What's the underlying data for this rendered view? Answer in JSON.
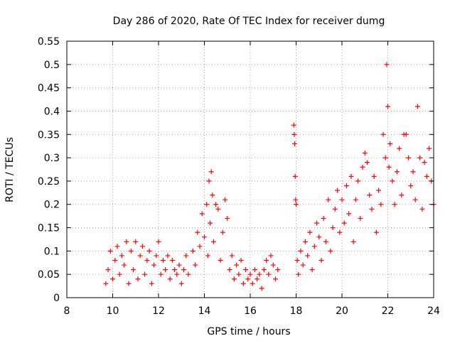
{
  "chart_data": {
    "type": "scatter",
    "title": "Day 286 of 2020, Rate Of TEC Index for receiver dumg",
    "xlabel": "GPS time / hours",
    "ylabel": "ROTI / TECUs",
    "xlim": [
      8,
      24
    ],
    "ylim": [
      0,
      0.55
    ],
    "x_ticks": [
      8,
      10,
      12,
      14,
      16,
      18,
      20,
      22,
      24
    ],
    "y_ticks": [
      0,
      0.05,
      0.1,
      0.15,
      0.2,
      0.25,
      0.3,
      0.35,
      0.4,
      0.45,
      0.5,
      0.55
    ],
    "x_tick_labels": [
      "8",
      "10",
      "12",
      "14",
      "16",
      "18",
      "20",
      "22",
      "24"
    ],
    "y_tick_labels": [
      "0",
      "0.05",
      "0.1",
      "0.15",
      "0.2",
      "0.25",
      "0.3",
      "0.35",
      "0.4",
      "0.45",
      "0.5",
      "0.55"
    ],
    "grid": true,
    "marker": "+",
    "series": [
      {
        "name": "ROTI",
        "color": "#ff0000",
        "points": [
          [
            9.7,
            0.03
          ],
          [
            9.8,
            0.06
          ],
          [
            9.9,
            0.1
          ],
          [
            10.0,
            0.04
          ],
          [
            10.1,
            0.08
          ],
          [
            10.2,
            0.11
          ],
          [
            10.3,
            0.05
          ],
          [
            10.4,
            0.09
          ],
          [
            10.5,
            0.07
          ],
          [
            10.6,
            0.12
          ],
          [
            10.7,
            0.03
          ],
          [
            10.8,
            0.1
          ],
          [
            10.9,
            0.06
          ],
          [
            11.0,
            0.12
          ],
          [
            11.1,
            0.04
          ],
          [
            11.2,
            0.09
          ],
          [
            11.3,
            0.11
          ],
          [
            11.4,
            0.05
          ],
          [
            11.5,
            0.08
          ],
          [
            11.6,
            0.1
          ],
          [
            11.7,
            0.03
          ],
          [
            11.8,
            0.07
          ],
          [
            11.9,
            0.09
          ],
          [
            12.0,
            0.12
          ],
          [
            12.1,
            0.05
          ],
          [
            12.2,
            0.08
          ],
          [
            12.3,
            0.06
          ],
          [
            12.4,
            0.09
          ],
          [
            12.5,
            0.04
          ],
          [
            12.6,
            0.08
          ],
          [
            12.7,
            0.06
          ],
          [
            12.8,
            0.05
          ],
          [
            12.9,
            0.07
          ],
          [
            13.0,
            0.03
          ],
          [
            13.1,
            0.06
          ],
          [
            13.2,
            0.09
          ],
          [
            13.3,
            0.05
          ],
          [
            13.5,
            0.1
          ],
          [
            13.6,
            0.07
          ],
          [
            13.7,
            0.14
          ],
          [
            13.8,
            0.11
          ],
          [
            13.9,
            0.18
          ],
          [
            14.0,
            0.13
          ],
          [
            14.1,
            0.2
          ],
          [
            14.15,
            0.09
          ],
          [
            14.2,
            0.25
          ],
          [
            14.25,
            0.16
          ],
          [
            14.3,
            0.27
          ],
          [
            14.35,
            0.22
          ],
          [
            14.4,
            0.12
          ],
          [
            14.5,
            0.2
          ],
          [
            14.6,
            0.19
          ],
          [
            14.7,
            0.08
          ],
          [
            14.8,
            0.14
          ],
          [
            14.9,
            0.21
          ],
          [
            15.0,
            0.17
          ],
          [
            15.1,
            0.06
          ],
          [
            15.2,
            0.09
          ],
          [
            15.3,
            0.04
          ],
          [
            15.4,
            0.07
          ],
          [
            15.5,
            0.05
          ],
          [
            15.6,
            0.08
          ],
          [
            15.7,
            0.03
          ],
          [
            15.8,
            0.06
          ],
          [
            15.9,
            0.04
          ],
          [
            16.0,
            0.05
          ],
          [
            16.1,
            0.03
          ],
          [
            16.2,
            0.06
          ],
          [
            16.3,
            0.04
          ],
          [
            16.4,
            0.05
          ],
          [
            16.5,
            0.02
          ],
          [
            16.6,
            0.06
          ],
          [
            16.7,
            0.08
          ],
          [
            16.8,
            0.05
          ],
          [
            16.9,
            0.09
          ],
          [
            17.0,
            0.07
          ],
          [
            17.1,
            0.04
          ],
          [
            17.2,
            0.06
          ],
          [
            17.9,
            0.37
          ],
          [
            17.92,
            0.35
          ],
          [
            17.94,
            0.33
          ],
          [
            17.96,
            0.26
          ],
          [
            17.98,
            0.21
          ],
          [
            18.0,
            0.2
          ],
          [
            18.05,
            0.08
          ],
          [
            18.1,
            0.05
          ],
          [
            18.2,
            0.1
          ],
          [
            18.3,
            0.07
          ],
          [
            18.4,
            0.12
          ],
          [
            18.5,
            0.09
          ],
          [
            18.6,
            0.14
          ],
          [
            18.7,
            0.06
          ],
          [
            18.8,
            0.11
          ],
          [
            18.9,
            0.16
          ],
          [
            19.0,
            0.13
          ],
          [
            19.1,
            0.08
          ],
          [
            19.2,
            0.17
          ],
          [
            19.3,
            0.12
          ],
          [
            19.4,
            0.21
          ],
          [
            19.5,
            0.1
          ],
          [
            19.6,
            0.15
          ],
          [
            19.7,
            0.19
          ],
          [
            19.8,
            0.23
          ],
          [
            19.9,
            0.14
          ],
          [
            20.0,
            0.21
          ],
          [
            20.1,
            0.16
          ],
          [
            20.2,
            0.24
          ],
          [
            20.3,
            0.18
          ],
          [
            20.4,
            0.26
          ],
          [
            20.5,
            0.12
          ],
          [
            20.6,
            0.21
          ],
          [
            20.7,
            0.25
          ],
          [
            20.8,
            0.17
          ],
          [
            20.9,
            0.28
          ],
          [
            21.0,
            0.31
          ],
          [
            21.1,
            0.29
          ],
          [
            21.2,
            0.22
          ],
          [
            21.3,
            0.19
          ],
          [
            21.4,
            0.26
          ],
          [
            21.5,
            0.14
          ],
          [
            21.6,
            0.23
          ],
          [
            21.7,
            0.2
          ],
          [
            21.8,
            0.35
          ],
          [
            21.9,
            0.3
          ],
          [
            21.95,
            0.5
          ],
          [
            22.0,
            0.41
          ],
          [
            22.05,
            0.28
          ],
          [
            22.1,
            0.33
          ],
          [
            22.2,
            0.25
          ],
          [
            22.3,
            0.2
          ],
          [
            22.4,
            0.27
          ],
          [
            22.5,
            0.32
          ],
          [
            22.6,
            0.22
          ],
          [
            22.7,
            0.35
          ],
          [
            22.8,
            0.35
          ],
          [
            22.9,
            0.3
          ],
          [
            23.0,
            0.24
          ],
          [
            23.1,
            0.27
          ],
          [
            23.2,
            0.21
          ],
          [
            23.3,
            0.41
          ],
          [
            23.4,
            0.3
          ],
          [
            23.5,
            0.19
          ],
          [
            23.6,
            0.29
          ],
          [
            23.7,
            0.26
          ],
          [
            23.8,
            0.32
          ],
          [
            23.9,
            0.25
          ],
          [
            24.0,
            0.2
          ]
        ]
      }
    ]
  }
}
